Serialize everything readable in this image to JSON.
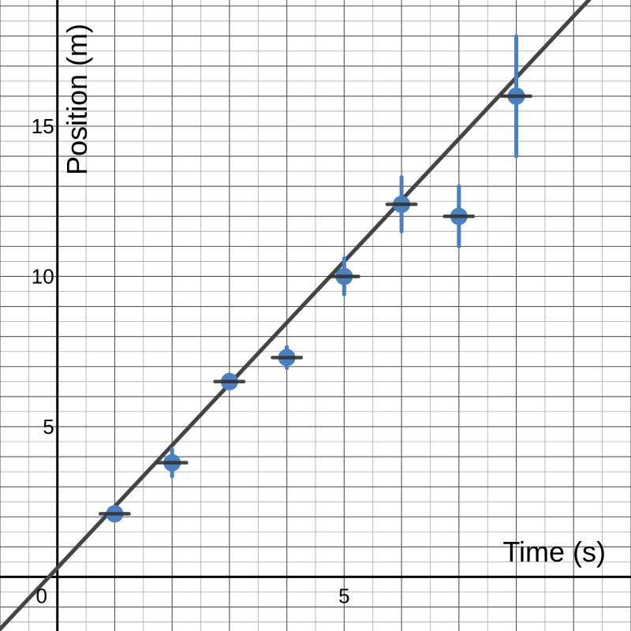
{
  "chart_data": {
    "type": "scatter",
    "xlabel": "Time (s)",
    "ylabel": "Position (m)",
    "xlim": [
      -1,
      10
    ],
    "ylim": [
      -1.8,
      19.2
    ],
    "grid": true,
    "x_ticks": [
      {
        "value": 0,
        "label": "0"
      },
      {
        "value": 5,
        "label": "5"
      }
    ],
    "y_ticks": [
      {
        "value": 5,
        "label": "5"
      },
      {
        "value": 10,
        "label": "10"
      },
      {
        "value": 15,
        "label": "15"
      }
    ],
    "minor_step": 0.5,
    "major_step": 1,
    "points": [
      {
        "x": 1,
        "y": 2.1,
        "yerr": 0.1,
        "xerr": 0.25
      },
      {
        "x": 2,
        "y": 3.8,
        "yerr": 0.45,
        "xerr": 0.25
      },
      {
        "x": 3,
        "y": 6.5,
        "yerr": 0.1,
        "xerr": 0.25
      },
      {
        "x": 4,
        "y": 7.3,
        "yerr": 0.35,
        "xerr": 0.25
      },
      {
        "x": 5,
        "y": 10.0,
        "yerr": 0.6,
        "xerr": 0.25
      },
      {
        "x": 6,
        "y": 12.4,
        "yerr": 0.9,
        "xerr": 0.25
      },
      {
        "x": 7,
        "y": 12.0,
        "yerr": 1.0,
        "xerr": 0.25
      },
      {
        "x": 8,
        "y": 16.0,
        "yerr": 2.0,
        "xerr": 0.25
      }
    ],
    "fit_line": {
      "slope": 2.04,
      "intercept": 0.3
    },
    "colors": {
      "points": "#4a7fc1",
      "error_bars": "#4a7fc1",
      "x_error_bars": "#333333",
      "fit_line": "#444444",
      "axes": "#000000",
      "grid_major": "#555555",
      "grid_minor": "#aaaaaa"
    }
  }
}
